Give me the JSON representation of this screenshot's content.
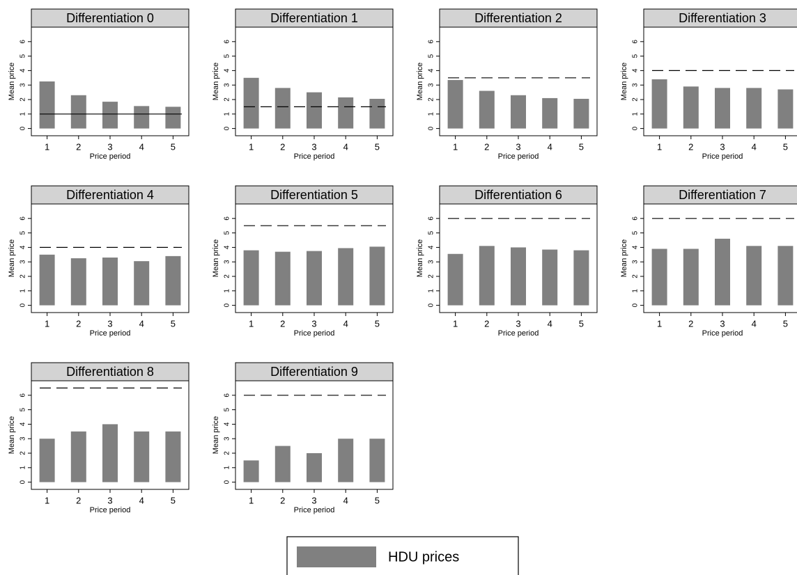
{
  "chart_data": [
    {
      "type": "bar",
      "title": "Differentiation 0",
      "xlabel": "Price period",
      "ylabel": "Mean price",
      "categories": [
        "1",
        "2",
        "3",
        "4",
        "5"
      ],
      "values": [
        3.25,
        2.3,
        1.85,
        1.55,
        1.5
      ],
      "color": "#808080",
      "ylim": [
        -0.5,
        7
      ],
      "yticks": [
        0,
        1,
        2,
        3,
        4,
        5,
        6
      ],
      "reference_line": {
        "value": 1,
        "style": "solid"
      }
    },
    {
      "type": "bar",
      "title": "Differentiation 1",
      "xlabel": "Price period",
      "ylabel": "Mean price",
      "categories": [
        "1",
        "2",
        "3",
        "4",
        "5"
      ],
      "values": [
        3.5,
        2.8,
        2.5,
        2.15,
        2.05
      ],
      "color": "#808080",
      "ylim": [
        -0.5,
        7
      ],
      "yticks": [
        0,
        1,
        2,
        3,
        4,
        5,
        6
      ],
      "reference_line": {
        "value": 1.5,
        "style": "dashed"
      }
    },
    {
      "type": "bar",
      "title": "Differentiation 2",
      "xlabel": "Price period",
      "ylabel": "Mean price",
      "categories": [
        "1",
        "2",
        "3",
        "4",
        "5"
      ],
      "values": [
        3.35,
        2.6,
        2.3,
        2.1,
        2.05
      ],
      "color": "#808080",
      "ylim": [
        -0.5,
        7
      ],
      "yticks": [
        0,
        1,
        2,
        3,
        4,
        5,
        6
      ],
      "reference_line": {
        "value": 3.5,
        "style": "dashed"
      }
    },
    {
      "type": "bar",
      "title": "Differentiation 3",
      "xlabel": "Price period",
      "ylabel": "Mean price",
      "categories": [
        "1",
        "2",
        "3",
        "4",
        "5"
      ],
      "values": [
        3.4,
        2.9,
        2.8,
        2.8,
        2.7
      ],
      "color": "#808080",
      "ylim": [
        -0.5,
        7
      ],
      "yticks": [
        0,
        1,
        2,
        3,
        4,
        5,
        6
      ],
      "reference_line": {
        "value": 4,
        "style": "dashed"
      }
    },
    {
      "type": "bar",
      "title": "Differentiation 4",
      "xlabel": "Price period",
      "ylabel": "Mean price",
      "categories": [
        "1",
        "2",
        "3",
        "4",
        "5"
      ],
      "values": [
        3.5,
        3.25,
        3.3,
        3.05,
        3.4
      ],
      "color": "#808080",
      "ylim": [
        -0.5,
        7
      ],
      "yticks": [
        0,
        1,
        2,
        3,
        4,
        5,
        6
      ],
      "reference_line": {
        "value": 4,
        "style": "dashed"
      }
    },
    {
      "type": "bar",
      "title": "Differentiation 5",
      "xlabel": "Price period",
      "ylabel": "Mean price",
      "categories": [
        "1",
        "2",
        "3",
        "4",
        "5"
      ],
      "values": [
        3.8,
        3.7,
        3.75,
        3.95,
        4.05
      ],
      "color": "#808080",
      "ylim": [
        -0.5,
        7
      ],
      "yticks": [
        0,
        1,
        2,
        3,
        4,
        5,
        6
      ],
      "reference_line": {
        "value": 5.5,
        "style": "dashed"
      }
    },
    {
      "type": "bar",
      "title": "Differentiation 6",
      "xlabel": "Price period",
      "ylabel": "Mean price",
      "categories": [
        "1",
        "2",
        "3",
        "4",
        "5"
      ],
      "values": [
        3.55,
        4.1,
        4.0,
        3.85,
        3.8
      ],
      "color": "#808080",
      "ylim": [
        -0.5,
        7
      ],
      "yticks": [
        0,
        1,
        2,
        3,
        4,
        5,
        6
      ],
      "reference_line": {
        "value": 6,
        "style": "dashed"
      }
    },
    {
      "type": "bar",
      "title": "Differentiation 7",
      "xlabel": "Price period",
      "ylabel": "Mean price",
      "categories": [
        "1",
        "2",
        "3",
        "4",
        "5"
      ],
      "values": [
        3.9,
        3.9,
        4.6,
        4.1,
        4.1
      ],
      "color": "#808080",
      "ylim": [
        -0.5,
        7
      ],
      "yticks": [
        0,
        1,
        2,
        3,
        4,
        5,
        6
      ],
      "reference_line": {
        "value": 6,
        "style": "dashed"
      }
    },
    {
      "type": "bar",
      "title": "Differentiation 8",
      "xlabel": "Price period",
      "ylabel": "Mean price",
      "categories": [
        "1",
        "2",
        "3",
        "4",
        "5"
      ],
      "values": [
        3,
        3.5,
        4,
        3.5,
        3.5
      ],
      "color": "#808080",
      "ylim": [
        -0.5,
        7
      ],
      "yticks": [
        0,
        1,
        2,
        3,
        4,
        5,
        6
      ],
      "reference_line": {
        "value": 6.5,
        "style": "dashed"
      }
    },
    {
      "type": "bar",
      "title": "Differentiation 9",
      "xlabel": "Price period",
      "ylabel": "Mean price",
      "categories": [
        "1",
        "2",
        "3",
        "4",
        "5"
      ],
      "values": [
        1.5,
        2.5,
        2,
        3,
        3
      ],
      "color": "#808080",
      "ylim": [
        -0.5,
        7
      ],
      "yticks": [
        0,
        1,
        2,
        3,
        4,
        5,
        6
      ],
      "reference_line": {
        "value": 6,
        "style": "dashed"
      }
    }
  ],
  "legend": {
    "items": [
      {
        "name": "HDU prices",
        "color": "#808080"
      }
    ]
  }
}
